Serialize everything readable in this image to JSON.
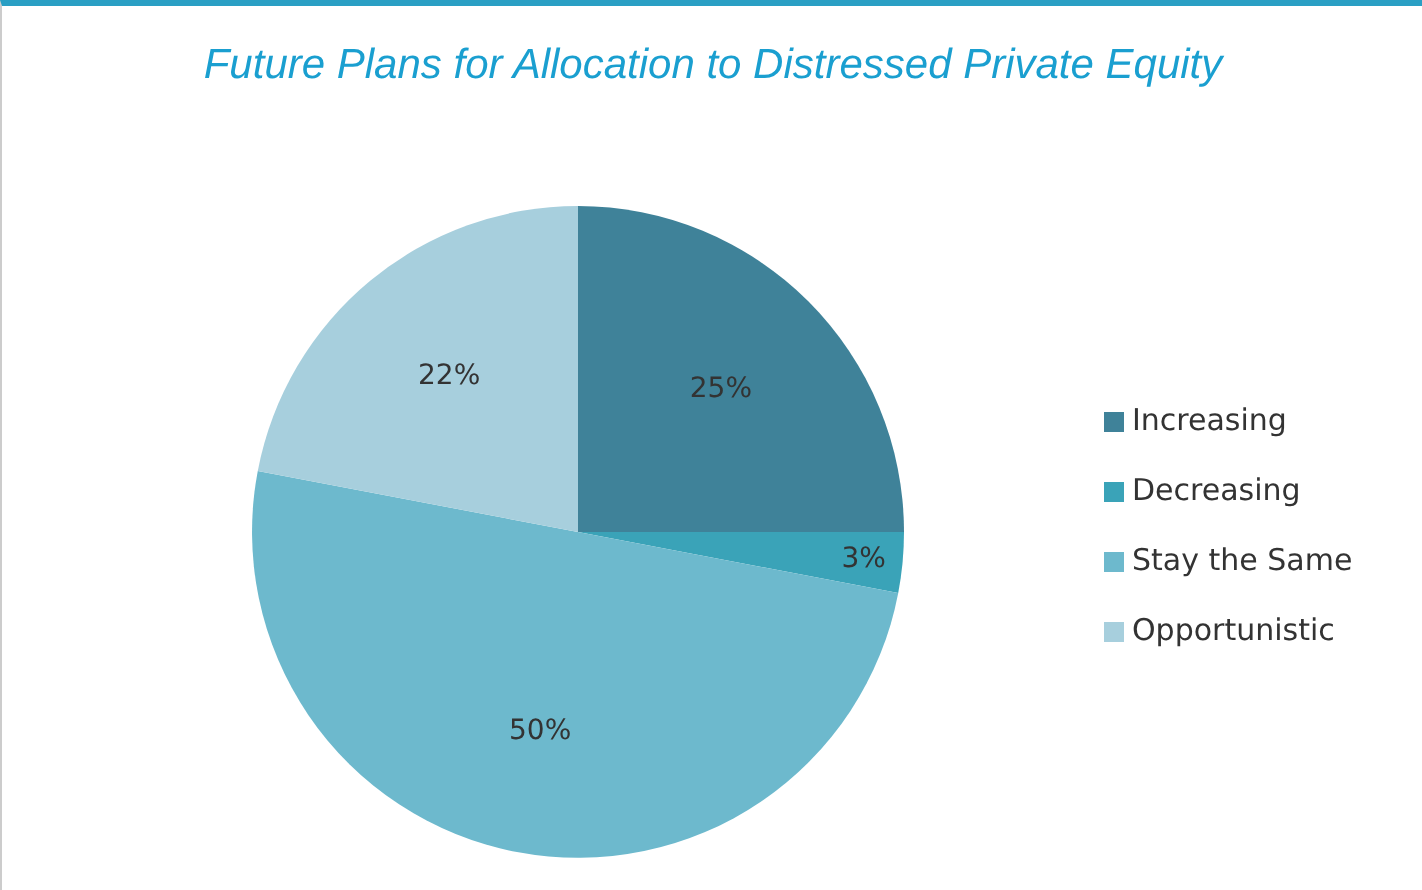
{
  "chart_data": {
    "type": "pie",
    "title": "Future Plans for Allocation to Distressed Private Equity",
    "categories": [
      "Increasing",
      "Decreasing",
      "Stay the Same",
      "Opportunistic"
    ],
    "values": [
      25,
      3,
      50,
      22
    ],
    "colors": [
      "#3f8299",
      "#3aa3b8",
      "#6db9cd",
      "#a7cfdd"
    ],
    "value_labels": [
      "25%",
      "3%",
      "50%",
      "22%"
    ],
    "legend": "right"
  }
}
